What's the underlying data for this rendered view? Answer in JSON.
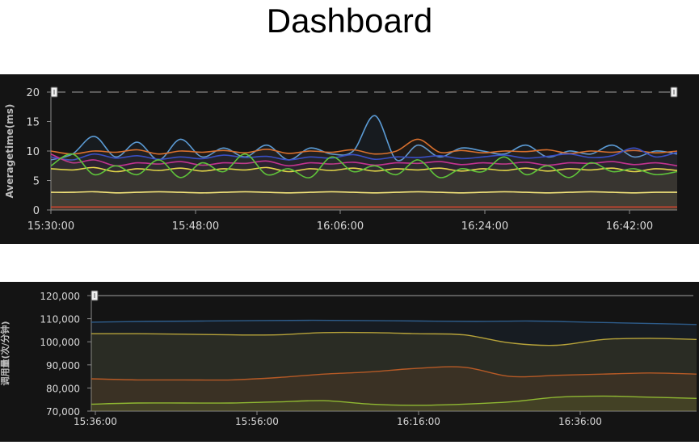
{
  "page_title": "Dashboard",
  "chart_data": [
    {
      "type": "area",
      "ylabel": "Averagetime(ms)",
      "x_tick_labels": [
        "15:30:00",
        "15:48:00",
        "16:06:00",
        "16:24:00",
        "16:42:00"
      ],
      "x_range": [
        "15:30:00",
        "16:48:00"
      ],
      "y_ticks": [
        0,
        5,
        10,
        15,
        20
      ],
      "ylim": [
        0,
        20
      ],
      "grid": false,
      "range_selector_handles": true,
      "series": [
        {
          "color": "#5b9bd5",
          "values": [
            8.5,
            9.5,
            12.5,
            9.0,
            11.5,
            8.5,
            12.0,
            9.0,
            10.5,
            9.0,
            11.0,
            8.5,
            10.5,
            9.5,
            10.0,
            16.0,
            8.5,
            11.0,
            9.0,
            10.5,
            10.0,
            9.5,
            11.0,
            9.0,
            10.0,
            9.5,
            11.0,
            9.0,
            10.0,
            9.5
          ]
        },
        {
          "color": "#d9702e",
          "values": [
            10.0,
            9.5,
            10.0,
            9.8,
            10.2,
            9.5,
            10.0,
            9.8,
            10.1,
            9.7,
            10.3,
            9.6,
            10.0,
            9.8,
            10.2,
            9.5,
            10.0,
            12.0,
            9.8,
            10.1,
            9.7,
            10.0,
            9.9,
            10.2,
            9.6,
            10.0,
            9.8,
            10.1,
            9.7,
            10.0
          ]
        },
        {
          "color": "#3a4fc4",
          "values": [
            9.0,
            8.5,
            9.5,
            8.8,
            9.2,
            8.6,
            9.0,
            8.7,
            9.3,
            8.9,
            9.1,
            8.5,
            9.0,
            8.8,
            9.4,
            8.6,
            9.0,
            8.9,
            9.2,
            8.7,
            9.0,
            9.3,
            8.8,
            9.1,
            9.5,
            8.9,
            9.2,
            10.5,
            9.0,
            9.8
          ]
        },
        {
          "color": "#c2338f",
          "values": [
            9.5,
            8.0,
            8.5,
            7.5,
            8.0,
            7.8,
            8.2,
            7.6,
            8.0,
            7.9,
            8.3,
            7.5,
            8.0,
            7.8,
            8.1,
            7.6,
            8.0,
            7.9,
            8.2,
            7.7,
            8.0,
            7.8,
            8.1,
            7.6,
            8.0,
            7.9,
            8.2,
            7.7,
            8.0,
            7.5
          ]
        },
        {
          "color": "#e7d64a",
          "values": [
            7.0,
            6.8,
            7.2,
            6.5,
            7.0,
            6.7,
            7.1,
            6.6,
            7.0,
            6.8,
            7.2,
            6.5,
            7.0,
            6.7,
            7.1,
            6.6,
            7.0,
            6.8,
            7.1,
            6.6,
            7.0,
            6.7,
            7.1,
            6.6,
            7.0,
            6.8,
            7.1,
            6.5,
            7.0,
            6.7
          ]
        },
        {
          "color": "#5ec23a",
          "values": [
            7.5,
            9.5,
            6.0,
            7.5,
            6.0,
            8.5,
            5.5,
            8.0,
            6.5,
            9.5,
            6.0,
            7.0,
            5.5,
            9.0,
            6.5,
            7.5,
            6.0,
            8.5,
            5.5,
            7.0,
            6.5,
            9.0,
            6.0,
            7.5,
            5.5,
            8.0,
            6.5,
            7.0,
            6.0,
            6.5
          ]
        },
        {
          "color": "#f2e37a",
          "values": [
            3.0,
            3.0,
            3.1,
            2.9,
            3.0,
            3.1,
            3.0,
            2.9,
            3.0,
            3.1,
            3.0,
            2.9,
            3.0,
            3.1,
            3.0,
            2.9,
            3.0,
            3.1,
            3.0,
            2.9,
            3.0,
            3.1,
            3.0,
            2.9,
            3.0,
            3.1,
            3.0,
            2.9,
            3.0,
            3.0
          ]
        },
        {
          "color": "#c8442f",
          "values": [
            0.5,
            0.5,
            0.5,
            0.5,
            0.5,
            0.5,
            0.5,
            0.5,
            0.5,
            0.5,
            0.5,
            0.5,
            0.5,
            0.5,
            0.5,
            0.5,
            0.5,
            0.5,
            0.5,
            0.5,
            0.5,
            0.5,
            0.5,
            0.5,
            0.5,
            0.5,
            0.5,
            0.5,
            0.5,
            0.5
          ]
        }
      ]
    },
    {
      "type": "area",
      "ylabel": "调用量(次/分钟)",
      "x_tick_labels": [
        "15:36:00",
        "15:56:00",
        "16:16:00",
        "16:36:00"
      ],
      "x_range": [
        "15:36:00",
        "16:52:00"
      ],
      "y_ticks": [
        70000,
        80000,
        90000,
        100000,
        110000,
        120000
      ],
      "y_tick_labels": [
        "70,000",
        "80,000",
        "90,000",
        "100,000",
        "110,000",
        "120,000"
      ],
      "ylim": [
        70000,
        120000
      ],
      "grid": false,
      "range_selector_handles": true,
      "series": [
        {
          "color": "#2e5d8c",
          "values": [
            108500,
            108800,
            109000,
            109200,
            109300,
            109200,
            109000,
            108800,
            109000,
            108500,
            108000,
            107500
          ]
        },
        {
          "color": "#b7a33a",
          "values": [
            103500,
            103500,
            103300,
            103000,
            103000,
            104000,
            104000,
            103500,
            103000,
            99500,
            98500,
            101000,
            101500,
            101000
          ]
        },
        {
          "color": "#b65a26",
          "values": [
            84000,
            83500,
            83500,
            83500,
            84500,
            86000,
            87000,
            88500,
            89000,
            85000,
            85500,
            86000,
            86500,
            86000
          ]
        },
        {
          "color": "#8fb832",
          "values": [
            73000,
            73500,
            73500,
            73500,
            74000,
            74500,
            73000,
            72500,
            73000,
            74000,
            76000,
            76500,
            76000,
            75500
          ]
        }
      ]
    }
  ]
}
